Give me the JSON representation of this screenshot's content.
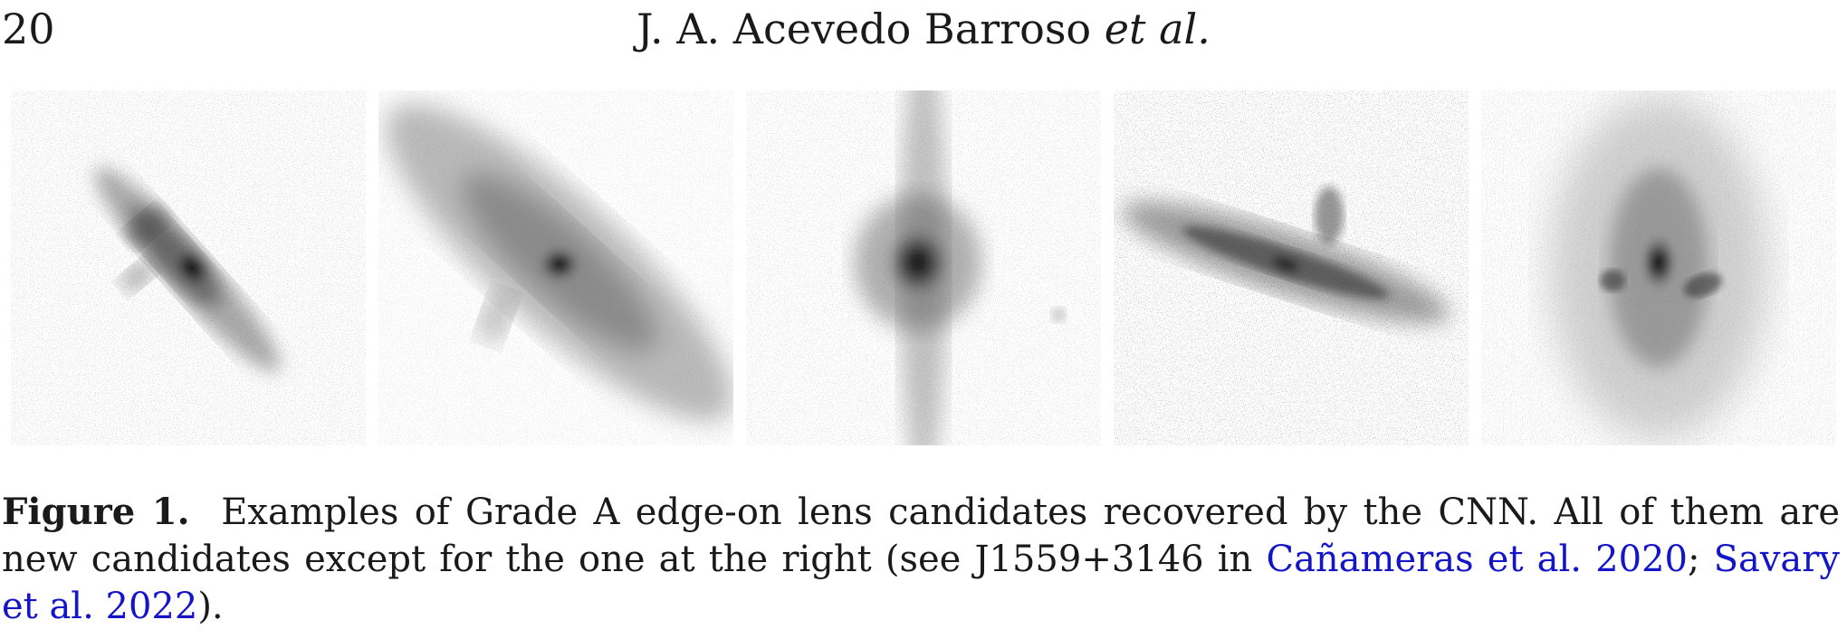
{
  "header": {
    "page_number": "20",
    "authors": "J. A. Acevedo Barroso",
    "authors_suffix": "et al."
  },
  "figure": {
    "panels_count": 5
  },
  "caption": {
    "label": "Figure 1.",
    "text_1": "Examples of Grade A edge-on lens candidates recovered by the CNN. All of them are new candidates except for the one at the right (see J1559+3146 in ",
    "ref_1": "Cañameras et al. 2020",
    "sep": "; ",
    "ref_2": "Savary et al. 2022",
    "text_2": ")."
  }
}
